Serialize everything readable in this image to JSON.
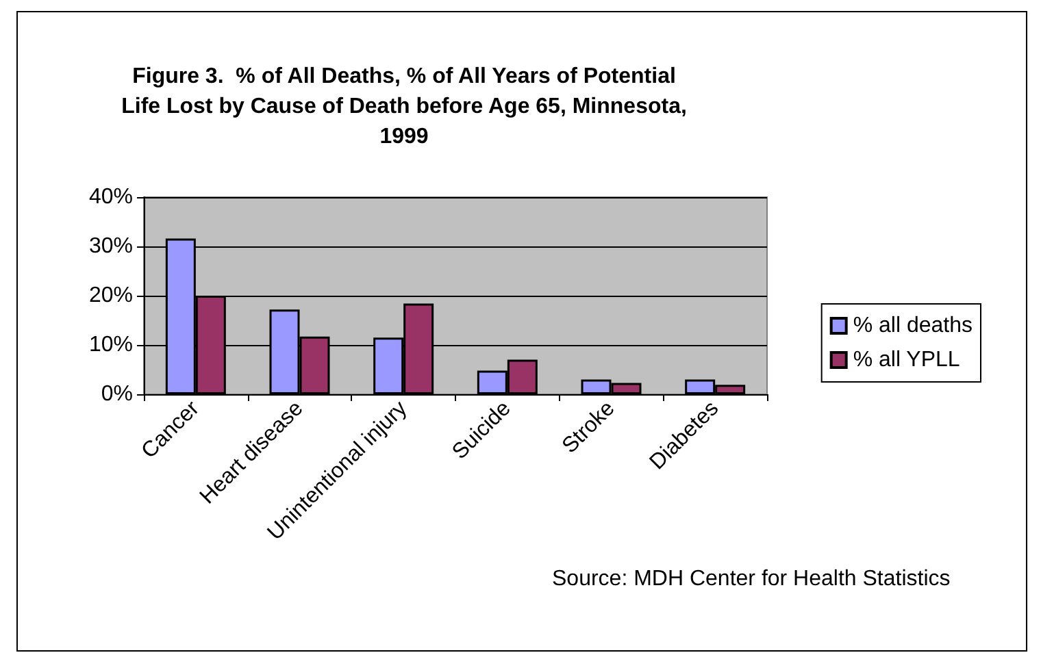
{
  "chart_data": {
    "type": "bar",
    "title": "Figure 3.  % of All Deaths, % of All Years of Potential\nLife Lost by Cause of Death before Age 65, Minnesota,\n1999",
    "categories": [
      "Cancer",
      "Heart disease",
      "Unintentional injury",
      "Suicide",
      "Stroke",
      "Diabetes"
    ],
    "series": [
      {
        "name": "% all deaths",
        "color": "#9999ff",
        "values": [
          31.6,
          17.2,
          11.5,
          4.8,
          3.0,
          3.0
        ]
      },
      {
        "name": "% all YPLL",
        "color": "#993366",
        "values": [
          20.0,
          11.7,
          18.4,
          7.0,
          2.3,
          1.9
        ]
      }
    ],
    "ylim": [
      0,
      40
    ],
    "yticks": [
      {
        "value": 0,
        "label": "0%"
      },
      {
        "value": 10,
        "label": "10%"
      },
      {
        "value": 20,
        "label": "20%"
      },
      {
        "value": 30,
        "label": "30%"
      },
      {
        "value": 40,
        "label": "40%"
      }
    ],
    "grid": "y",
    "legend": "right",
    "annotations": [
      "Source: MDH Center for Health Statistics"
    ]
  }
}
